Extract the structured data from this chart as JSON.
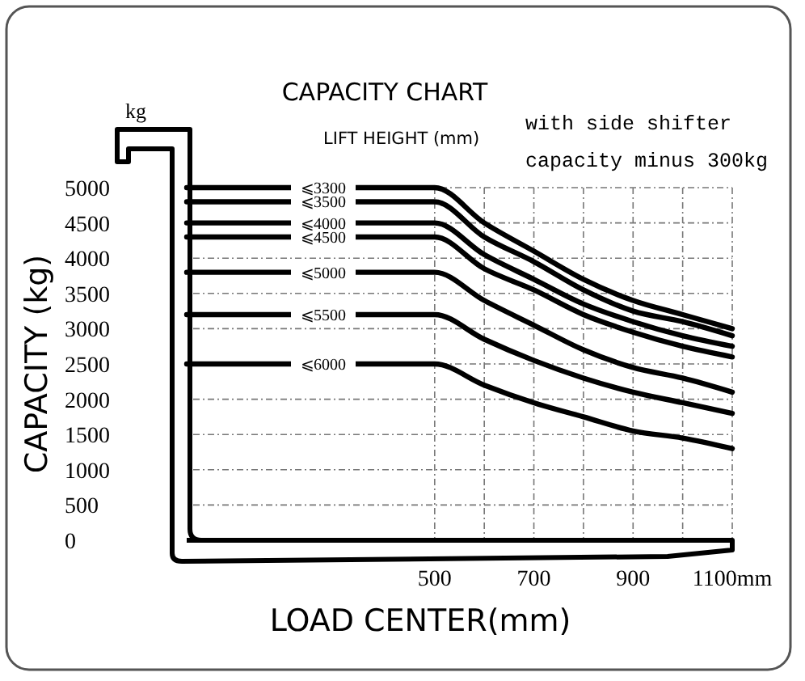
{
  "chart_data": {
    "type": "line",
    "title": "CAPACITY CHART",
    "xlabel": "LOAD CENTER(mm)",
    "ylabel": "CAPACITY (kg)",
    "legend_title": "LIFT HEIGHT (mm)",
    "annotations": [
      "kg",
      "with side shifter",
      "capacity minus 300kg"
    ],
    "x": [
      0,
      500,
      600,
      700,
      800,
      900,
      1000,
      1100
    ],
    "series": [
      {
        "name": "⩽3300",
        "color": "#000000",
        "values": [
          5000,
          5000,
          4500,
          4100,
          3700,
          3400,
          3200,
          3000
        ]
      },
      {
        "name": "⩽3500",
        "color": "#000000",
        "values": [
          4800,
          4800,
          4300,
          3950,
          3550,
          3250,
          3100,
          2900
        ]
      },
      {
        "name": "⩽4000",
        "color": "#000000",
        "values": [
          4500,
          4500,
          4050,
          3700,
          3350,
          3100,
          2900,
          2750
        ]
      },
      {
        "name": "⩽4500",
        "color": "#000000",
        "values": [
          4300,
          4300,
          3850,
          3550,
          3200,
          2950,
          2750,
          2600
        ]
      },
      {
        "name": "⩽5000",
        "color": "#000000",
        "values": [
          3800,
          3800,
          3400,
          3050,
          2700,
          2450,
          2300,
          2100
        ]
      },
      {
        "name": "⩽5500",
        "color": "#000000",
        "values": [
          3200,
          3200,
          2850,
          2550,
          2300,
          2100,
          1950,
          1800
        ]
      },
      {
        "name": "⩽6000",
        "color": "#000000",
        "values": [
          2500,
          2500,
          2200,
          1950,
          1750,
          1550,
          1450,
          1300
        ]
      }
    ],
    "xlim": [
      0,
      1100
    ],
    "ylim": [
      0,
      5000
    ],
    "xticks": [
      500,
      {
        "value": 600,
        "label": null
      },
      700,
      {
        "value": 800,
        "label": null
      },
      900,
      {
        "value": 1000,
        "label": null
      },
      {
        "value": 1100,
        "label": "1100mm"
      }
    ],
    "yticks": [
      0,
      500,
      1000,
      1500,
      2000,
      2500,
      3000,
      3500,
      4000,
      4500,
      5000
    ],
    "grid": true,
    "marker": "none",
    "line_style": "solid"
  }
}
